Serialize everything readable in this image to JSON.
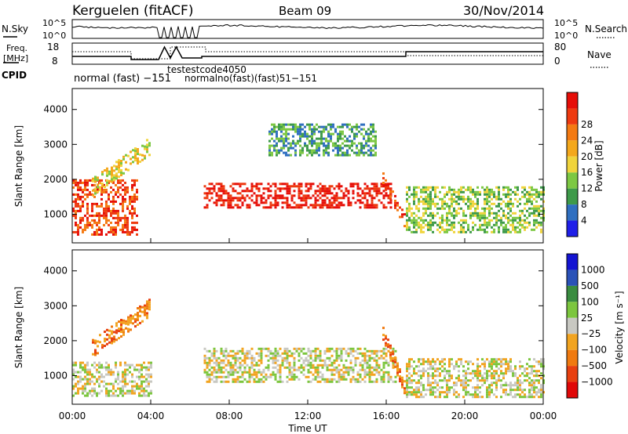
{
  "header": {
    "station": "Kerguelen (fitACF)",
    "beam": "Beam 09",
    "date": "30/Nov/2014"
  },
  "top_panels": {
    "nsky_label": "N.Sky",
    "nsky_ticks": [
      "10^5",
      "10^0"
    ],
    "nsearch_label": "N.Search",
    "nsearch_ticks": [
      "10^5",
      "10^0"
    ],
    "freq_label_1": "Freq.",
    "freq_label_2": "[MHz]",
    "freq_ticks": [
      "18",
      "8"
    ],
    "nave_label": "Nave",
    "nave_ticks": [
      "80",
      "0"
    ],
    "cpid_label": "CPID",
    "cpid_text": "normal (fast)  −151",
    "cpid_overlap_1": "testestcode4050",
    "cpid_overlap_2": "normalno(fast)(fast)51−151"
  },
  "colors": {
    "power": [
      "#1f1fe8",
      "#2f6fc0",
      "#3e9a4a",
      "#7dc843",
      "#f0d43c",
      "#f4a81c",
      "#f47a12",
      "#ee3a10",
      "#e60e08"
    ],
    "velocity": [
      "#1414d2",
      "#2a52b8",
      "#3a8c40",
      "#7cc63e",
      "#c8c8c2",
      "#f2a420",
      "#f07a10",
      "#e84010",
      "#e00808"
    ],
    "ground_scatter": "#c8c8c2"
  },
  "chart_data": [
    {
      "type": "heatmap",
      "panel": "power",
      "xlabel": "",
      "ylabel": "Slant Range [km]",
      "ylim": [
        180,
        4600
      ],
      "x_ticks": [],
      "y_ticks": [
        "1000",
        "2000",
        "3000",
        "4000"
      ],
      "colorbar_label": "Power [dB]",
      "colorbar_ticks": [
        "4",
        "8",
        "12",
        "16",
        "20",
        "24",
        "28"
      ],
      "structures": [
        {
          "name": "dayside band",
          "t_start": 0.0,
          "t_end": 3.3,
          "r_min": 400,
          "r_max": 2000,
          "level": 7
        },
        {
          "name": "oblique arc",
          "t_start": 1.0,
          "t_end": 4.0,
          "r_min": 1800,
          "r_max": 3000,
          "level": 4
        },
        {
          "name": "main auroral echo",
          "t_start": 6.7,
          "t_end": 16.2,
          "r_min": 1200,
          "r_max": 1900,
          "level": 8
        },
        {
          "name": "high range patch",
          "t_start": 10.0,
          "t_end": 15.5,
          "r_min": 2700,
          "r_max": 3600,
          "level": 2
        },
        {
          "name": "descending trace",
          "t_start": 15.8,
          "t_end": 17.0,
          "r_min": 700,
          "r_max": 2000,
          "level": 7
        },
        {
          "name": "late band",
          "t_start": 17.0,
          "t_end": 24.0,
          "r_min": 500,
          "r_max": 1800,
          "level": 3
        }
      ]
    },
    {
      "type": "heatmap",
      "panel": "velocity",
      "xlabel": "Time UT",
      "ylabel": "Slant Range [km]",
      "ylim": [
        180,
        4600
      ],
      "x_ticks": [
        "00:00",
        "04:00",
        "08:00",
        "12:00",
        "16:00",
        "20:00",
        "00:00"
      ],
      "y_ticks": [
        "1000",
        "2000",
        "3000",
        "4000"
      ],
      "colorbar_label": "Velocity [m s⁻¹]",
      "colorbar_ticks": [
        "1000",
        "500",
        "100",
        "25",
        "−25",
        "−100",
        "−500",
        "−1000"
      ],
      "structures": [
        {
          "name": "ground scatter band",
          "t_start": 0.0,
          "t_end": 4.0,
          "r_min": 400,
          "r_max": 1400,
          "level": 4
        },
        {
          "name": "oblique arc",
          "t_start": 1.0,
          "t_end": 4.0,
          "r_min": 1800,
          "r_max": 3000,
          "level": 6
        },
        {
          "name": "ground scatter main",
          "t_start": 6.7,
          "t_end": 16.5,
          "r_min": 800,
          "r_max": 1800,
          "level": 4
        },
        {
          "name": "descending trace",
          "t_start": 15.8,
          "t_end": 17.0,
          "r_min": 500,
          "r_max": 2200,
          "level": 6
        },
        {
          "name": "late ground scatter",
          "t_start": 17.0,
          "t_end": 24.0,
          "r_min": 400,
          "r_max": 1500,
          "level": 4
        }
      ]
    }
  ]
}
